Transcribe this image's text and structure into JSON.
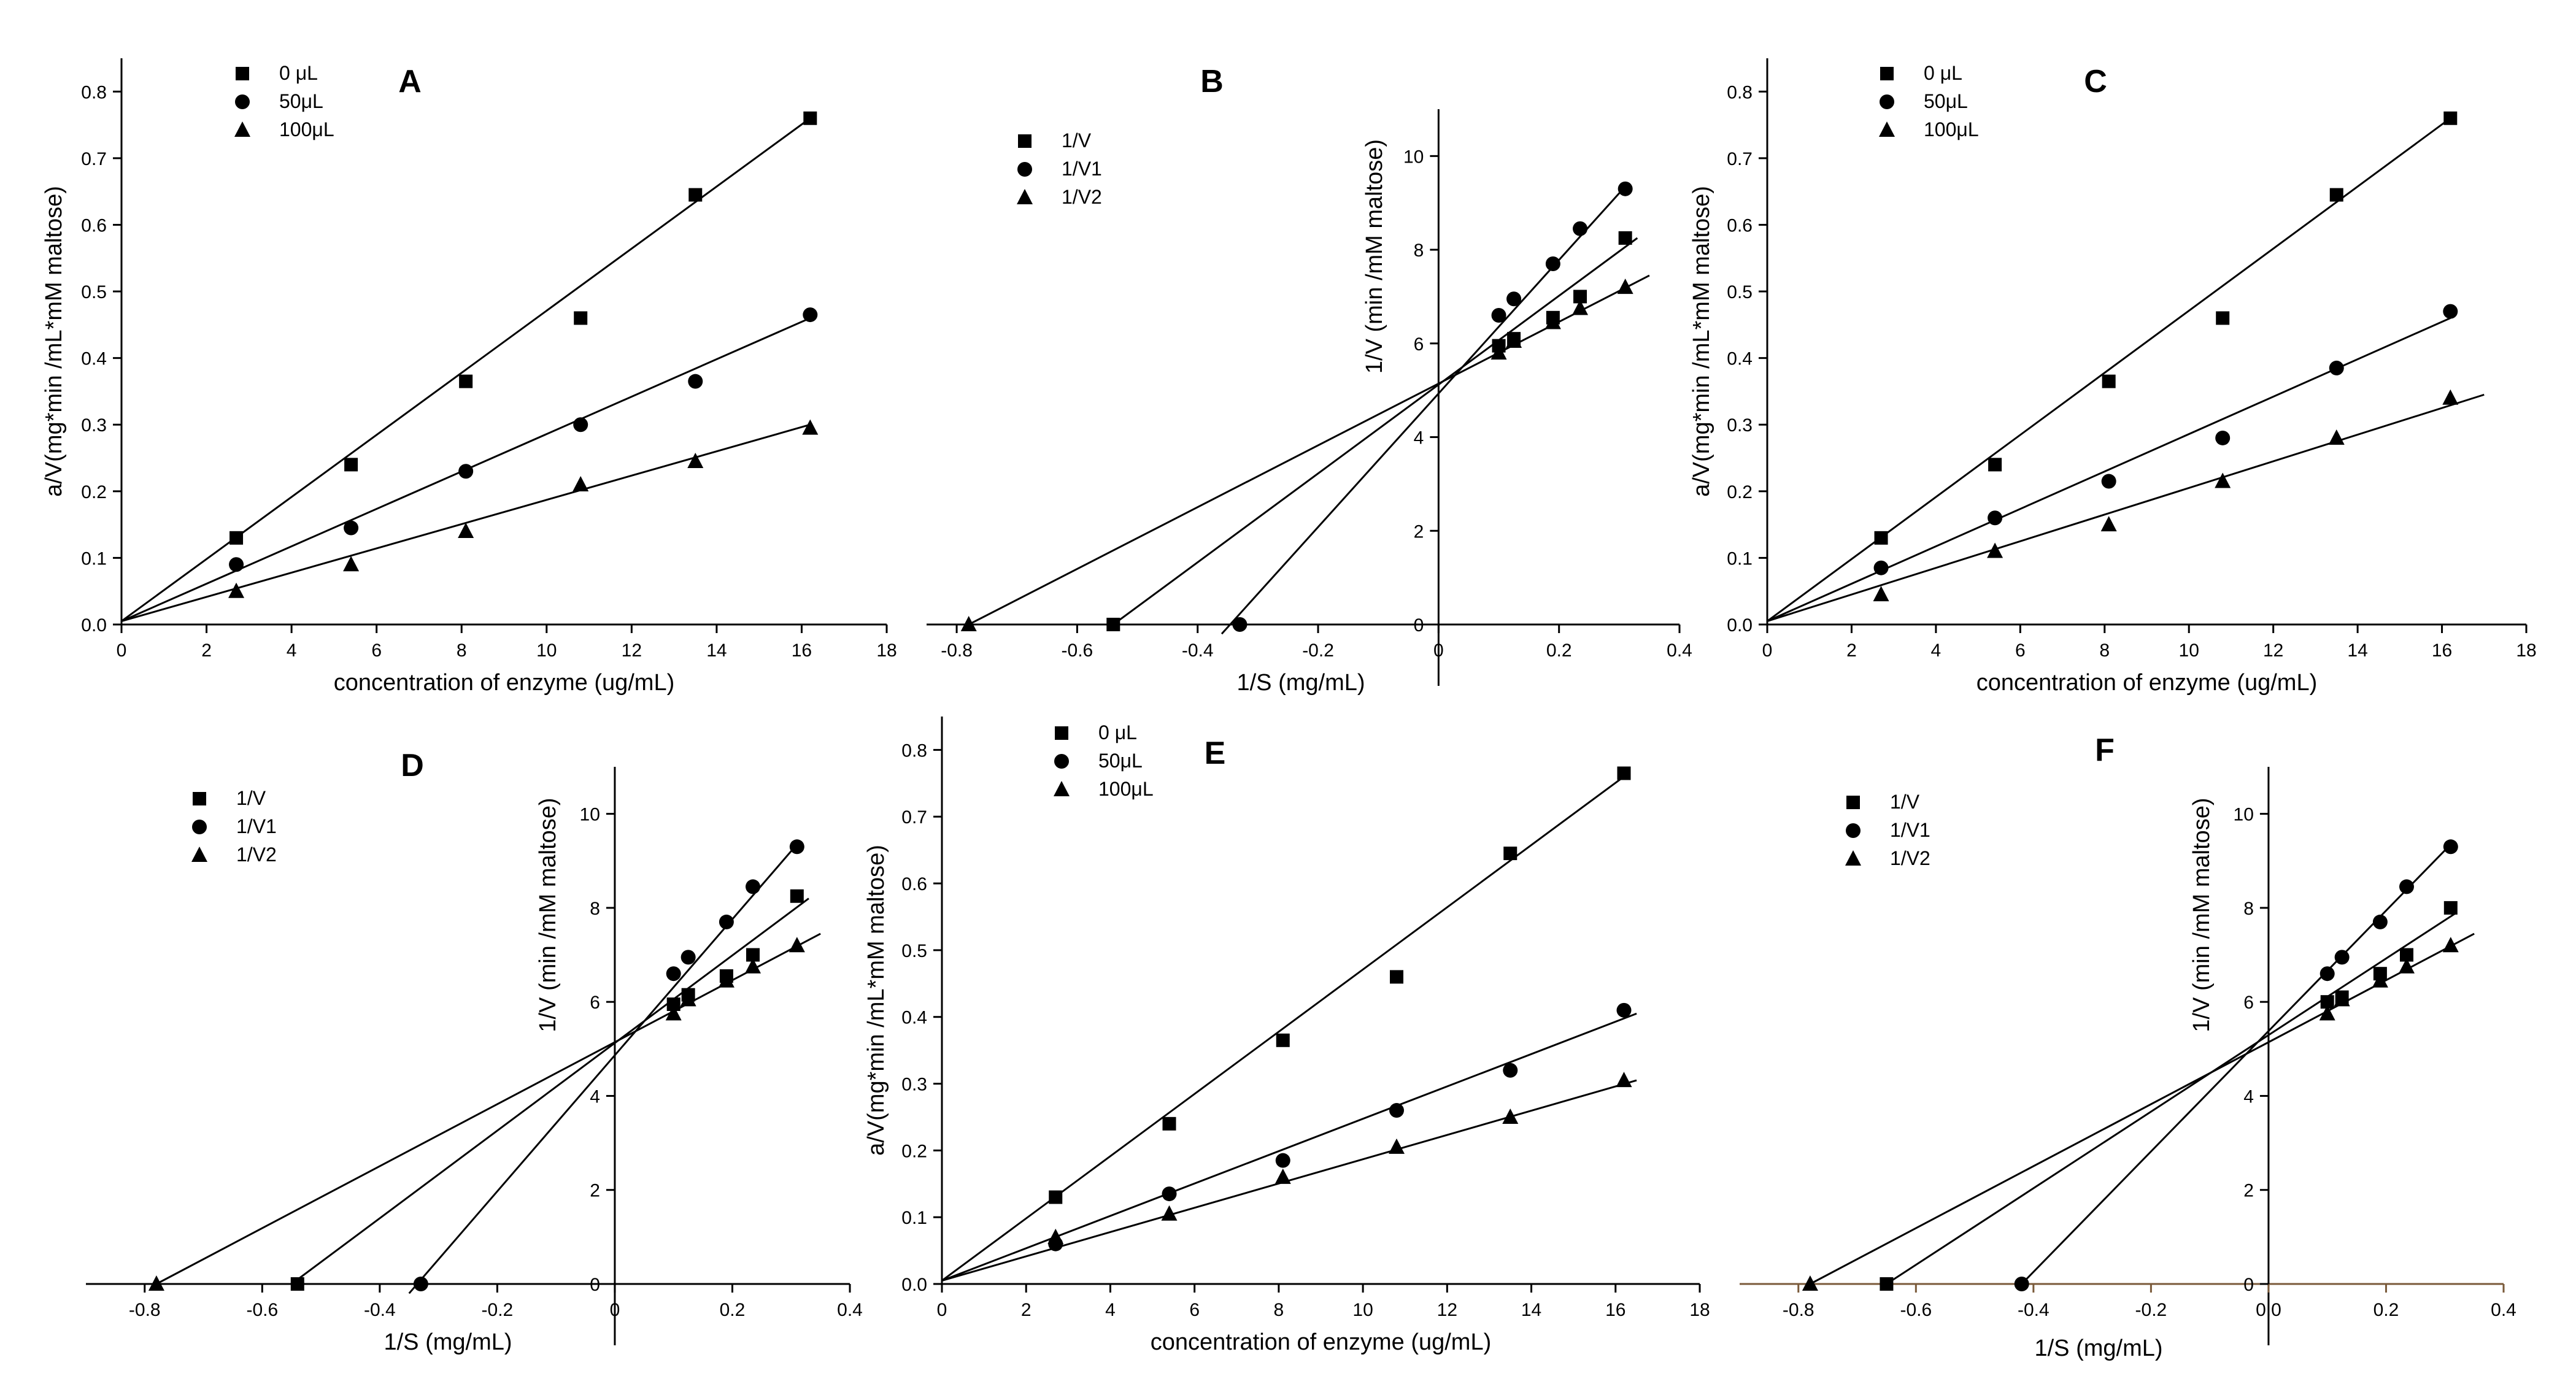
{
  "figure": {
    "background": "#ffffff",
    "ink": "#000000",
    "f_axis_color": "#7a5a3a"
  },
  "chart_data": [
    {
      "id": "A",
      "type": "scatter",
      "letter": "A",
      "xlabel": "concentration of enzyme (ug/mL)",
      "ylabel": "a/V(mg*min /mL*mM maltose)",
      "xlim": [
        0,
        18
      ],
      "ylim": [
        0,
        0.85
      ],
      "xticks": [
        "0",
        "2",
        "4",
        "6",
        "8",
        "10",
        "12",
        "14",
        "16",
        "18"
      ],
      "yticks": [
        "0.0",
        "0.1",
        "0.2",
        "0.3",
        "0.4",
        "0.5",
        "0.6",
        "0.7",
        "0.8"
      ],
      "series": [
        {
          "name": "0 μL",
          "marker": "square",
          "x": [
            2.7,
            5.4,
            8.1,
            10.8,
            13.5,
            16.2
          ],
          "y": [
            0.13,
            0.24,
            0.365,
            0.46,
            0.645,
            0.76
          ],
          "fit": {
            "x": [
              0,
              16.2
            ],
            "y": [
              0.005,
              0.76
            ]
          }
        },
        {
          "name": "50μL",
          "marker": "circle",
          "x": [
            2.7,
            5.4,
            8.1,
            10.8,
            13.5,
            16.2
          ],
          "y": [
            0.09,
            0.145,
            0.23,
            0.3,
            0.365,
            0.465
          ],
          "fit": {
            "x": [
              0,
              16.2
            ],
            "y": [
              0.005,
              0.46
            ]
          }
        },
        {
          "name": "100μL",
          "marker": "triangle",
          "x": [
            2.7,
            5.4,
            8.1,
            10.8,
            13.5,
            16.2
          ],
          "y": [
            0.05,
            0.09,
            0.14,
            0.21,
            0.245,
            0.295
          ],
          "fit": {
            "x": [
              0,
              16.2
            ],
            "y": [
              0.005,
              0.3
            ]
          }
        }
      ]
    },
    {
      "id": "B",
      "type": "scatter",
      "letter": "B",
      "xlabel": "1/S (mg/mL)",
      "ylabel": "1/V (min /mM maltose)",
      "xlim": [
        -0.85,
        0.4
      ],
      "ylim": [
        0,
        11
      ],
      "xticks": [
        "-0.8",
        "-0.6",
        "-0.4",
        "-0.2",
        "0",
        "0.2",
        "0.4"
      ],
      "yticks": [
        "0",
        "2",
        "4",
        "6",
        "8",
        "10"
      ],
      "series": [
        {
          "name": "1/V",
          "marker": "square",
          "x": [
            0.1,
            0.125,
            0.19,
            0.235,
            0.31,
            -0.54
          ],
          "y": [
            5.95,
            6.1,
            6.55,
            7.0,
            8.25,
            0
          ],
          "fit": {
            "x": [
              -0.54,
              0.33
            ],
            "y": [
              0,
              8.25
            ]
          }
        },
        {
          "name": "1/V1",
          "marker": "circle",
          "x": [
            0.1,
            0.125,
            0.19,
            0.235,
            0.31,
            -0.33
          ],
          "y": [
            6.6,
            6.95,
            7.7,
            8.45,
            9.3,
            0
          ],
          "fit": {
            "x": [
              -0.36,
              0.31
            ],
            "y": [
              -0.2,
              9.35
            ]
          }
        },
        {
          "name": "1/V2",
          "marker": "triangle",
          "x": [
            0.1,
            0.125,
            0.19,
            0.235,
            0.31,
            -0.78
          ],
          "y": [
            5.8,
            6.05,
            6.45,
            6.75,
            7.2,
            0
          ],
          "fit": {
            "x": [
              -0.78,
              0.35
            ],
            "y": [
              0,
              7.45
            ]
          }
        }
      ]
    },
    {
      "id": "C",
      "type": "scatter",
      "letter": "C",
      "xlabel": "concentration of enzyme (ug/mL)",
      "ylabel": "a/V(mg*min /mL*mM maltose)",
      "xlim": [
        0,
        18
      ],
      "ylim": [
        0,
        0.85
      ],
      "xticks": [
        "0",
        "2",
        "4",
        "6",
        "8",
        "10",
        "12",
        "14",
        "16",
        "18"
      ],
      "yticks": [
        "0.0",
        "0.1",
        "0.2",
        "0.3",
        "0.4",
        "0.5",
        "0.6",
        "0.7",
        "0.8"
      ],
      "series": [
        {
          "name": "0 μL",
          "marker": "square",
          "x": [
            2.7,
            5.4,
            8.1,
            10.8,
            13.5,
            16.2
          ],
          "y": [
            0.13,
            0.24,
            0.365,
            0.46,
            0.645,
            0.76
          ],
          "fit": {
            "x": [
              0,
              16.2
            ],
            "y": [
              0.005,
              0.76
            ]
          }
        },
        {
          "name": "50μL",
          "marker": "circle",
          "x": [
            2.7,
            5.4,
            8.1,
            10.8,
            13.5,
            16.2
          ],
          "y": [
            0.085,
            0.16,
            0.215,
            0.28,
            0.385,
            0.47
          ],
          "fit": {
            "x": [
              0,
              16.2
            ],
            "y": [
              0.005,
              0.46
            ]
          }
        },
        {
          "name": "100μL",
          "marker": "triangle",
          "x": [
            2.7,
            5.4,
            8.1,
            10.8,
            13.5,
            16.2
          ],
          "y": [
            0.045,
            0.11,
            0.15,
            0.215,
            0.28,
            0.34
          ],
          "fit": {
            "x": [
              0,
              17
            ],
            "y": [
              0.005,
              0.345
            ]
          }
        }
      ]
    },
    {
      "id": "D",
      "type": "scatter",
      "letter": "D",
      "xlabel": "1/S (mg/mL)",
      "ylabel": "1/V (min /mM maltose)",
      "xlim": [
        -0.9,
        0.4
      ],
      "ylim": [
        0,
        11
      ],
      "xticks": [
        "-0.8",
        "-0.6",
        "-0.4",
        "-0.2",
        "0",
        "0.2",
        "0.4"
      ],
      "yticks": [
        "0",
        "2",
        "4",
        "6",
        "8",
        "10"
      ],
      "series": [
        {
          "name": "1/V",
          "marker": "square",
          "x": [
            0.1,
            0.125,
            0.19,
            0.235,
            0.31,
            -0.54
          ],
          "y": [
            5.95,
            6.15,
            6.55,
            7.0,
            8.25,
            0
          ],
          "fit": {
            "x": [
              -0.55,
              0.33
            ],
            "y": [
              0,
              8.2
            ]
          }
        },
        {
          "name": "1/V1",
          "marker": "circle",
          "x": [
            0.1,
            0.125,
            0.19,
            0.235,
            0.31,
            -0.33
          ],
          "y": [
            6.6,
            6.95,
            7.7,
            8.45,
            9.3,
            0
          ],
          "fit": {
            "x": [
              -0.35,
              0.31
            ],
            "y": [
              -0.2,
              9.35
            ]
          }
        },
        {
          "name": "1/V2",
          "marker": "triangle",
          "x": [
            0.1,
            0.125,
            0.19,
            0.235,
            0.31,
            -0.78
          ],
          "y": [
            5.75,
            6.05,
            6.45,
            6.75,
            7.2,
            0
          ],
          "fit": {
            "x": [
              -0.78,
              0.35
            ],
            "y": [
              0,
              7.45
            ]
          }
        }
      ]
    },
    {
      "id": "E",
      "type": "scatter",
      "letter": "E",
      "xlabel": "concentration of enzyme (ug/mL)",
      "ylabel": "a/V(mg*min /mL*mM maltose)",
      "xlim": [
        0,
        18
      ],
      "ylim": [
        0,
        0.85
      ],
      "xticks": [
        "0",
        "2",
        "4",
        "6",
        "8",
        "10",
        "12",
        "14",
        "16",
        "18"
      ],
      "yticks": [
        "0.0",
        "0.1",
        "0.2",
        "0.3",
        "0.4",
        "0.5",
        "0.6",
        "0.7",
        "0.8"
      ],
      "series": [
        {
          "name": "0 μL",
          "marker": "square",
          "x": [
            2.7,
            5.4,
            8.1,
            10.8,
            13.5,
            16.2
          ],
          "y": [
            0.13,
            0.24,
            0.365,
            0.46,
            0.645,
            0.765
          ],
          "fit": {
            "x": [
              0,
              16.2
            ],
            "y": [
              0.005,
              0.76
            ]
          }
        },
        {
          "name": "50μL",
          "marker": "circle",
          "x": [
            2.7,
            5.4,
            8.1,
            10.8,
            13.5,
            16.2
          ],
          "y": [
            0.06,
            0.135,
            0.185,
            0.26,
            0.32,
            0.41
          ],
          "fit": {
            "x": [
              0,
              16.5
            ],
            "y": [
              0.005,
              0.405
            ]
          }
        },
        {
          "name": "100μL",
          "marker": "triangle",
          "x": [
            2.7,
            5.4,
            8.1,
            10.8,
            13.5,
            16.2
          ],
          "y": [
            0.07,
            0.105,
            0.16,
            0.205,
            0.25,
            0.305
          ],
          "fit": {
            "x": [
              0,
              16.5
            ],
            "y": [
              0.005,
              0.305
            ]
          }
        }
      ]
    },
    {
      "id": "F",
      "type": "scatter",
      "letter": "F",
      "xlabel": "1/S (mg/mL)",
      "ylabel": "1/V (min /mM maltose)",
      "xlim": [
        -0.9,
        0.4
      ],
      "ylim": [
        0,
        11
      ],
      "xticks": [
        "-0.8",
        "-0.6",
        "-0.4",
        "-0.2",
        "0.0",
        "0.2",
        "0.4"
      ],
      "yticks": [
        "0",
        "2",
        "4",
        "6",
        "8",
        "10"
      ],
      "series": [
        {
          "name": "1/V",
          "marker": "square",
          "x": [
            0.1,
            0.125,
            0.19,
            0.235,
            0.31,
            -0.65
          ],
          "y": [
            6.0,
            6.1,
            6.6,
            7.0,
            8.0,
            0
          ],
          "fit": {
            "x": [
              -0.65,
              0.32
            ],
            "y": [
              0,
              7.9
            ]
          }
        },
        {
          "name": "1/V1",
          "marker": "circle",
          "x": [
            0.1,
            0.125,
            0.19,
            0.235,
            0.31,
            -0.42
          ],
          "y": [
            6.6,
            6.95,
            7.7,
            8.45,
            9.3,
            0
          ],
          "fit": {
            "x": [
              -0.42,
              0.31
            ],
            "y": [
              0,
              9.35
            ]
          }
        },
        {
          "name": "1/V2",
          "marker": "triangle",
          "x": [
            0.1,
            0.125,
            0.19,
            0.235,
            0.31,
            -0.78
          ],
          "y": [
            5.75,
            6.05,
            6.45,
            6.75,
            7.2,
            0
          ],
          "fit": {
            "x": [
              -0.78,
              0.35
            ],
            "y": [
              0,
              7.45
            ]
          }
        }
      ]
    }
  ]
}
